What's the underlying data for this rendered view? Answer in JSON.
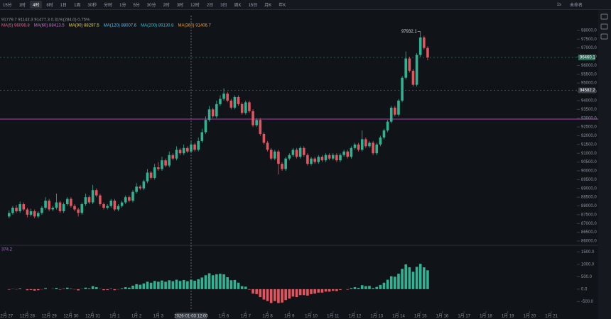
{
  "toolbar": {
    "items": [
      "15分",
      "1时",
      "4时",
      "8时",
      "1日",
      "1周",
      "30秒",
      "分时",
      "1分",
      "5分",
      "30分",
      "2时",
      "3时",
      "12时",
      "2日",
      "3日",
      "周K",
      "15日",
      "月K",
      "年K"
    ],
    "active_index": 2,
    "right": [
      "1s",
      "未命名"
    ]
  },
  "chart_data": {
    "type": "candlestick",
    "info": "91779.7  91143.3  91477.3  0.31%(284.0)  0.75%",
    "legend": [
      {
        "name": "MA(5) 96096.8",
        "color": "#e8618c"
      },
      {
        "name": "MA(60) 88413.5",
        "color": "#c86fd0"
      },
      {
        "name": "MA(90) 88297.5",
        "color": "#e6d34a"
      },
      {
        "name": "MA(120) 88007.6",
        "color": "#4fc3f7"
      },
      {
        "name": "MA(200) 89130.8",
        "color": "#26c6da"
      },
      {
        "name": "MA(360) 91406.7",
        "color": "#f0a030"
      }
    ],
    "up_color": "#2fb392",
    "down_color": "#e2555f",
    "xlim": [
      -2.5,
      156
    ],
    "xticks": [
      {
        "value": -1,
        "label": "12月 27"
      },
      {
        "value": 5,
        "label": "12月 28"
      },
      {
        "value": 11,
        "label": "12月 29"
      },
      {
        "value": 17,
        "label": "12月 30"
      },
      {
        "value": 23,
        "label": "12月 31"
      },
      {
        "value": 29,
        "label": "1月 1"
      },
      {
        "value": 35,
        "label": "1月 2"
      },
      {
        "value": 41,
        "label": "1月 3"
      },
      {
        "value": 59,
        "label": "1月 6"
      },
      {
        "value": 65,
        "label": "1月 7"
      },
      {
        "value": 71,
        "label": "1月 8"
      },
      {
        "value": 77,
        "label": "1月 9"
      },
      {
        "value": 83,
        "label": "1月 10"
      },
      {
        "value": 89,
        "label": "1月 11"
      },
      {
        "value": 95,
        "label": "1月 12"
      },
      {
        "value": 101,
        "label": "1月 13"
      },
      {
        "value": 107,
        "label": "1月 14"
      },
      {
        "value": 113,
        "label": "1月 15"
      },
      {
        "value": 119,
        "label": "1月 16"
      },
      {
        "value": 125,
        "label": "1月 17"
      },
      {
        "value": 131,
        "label": "1月 18"
      },
      {
        "value": 137,
        "label": "1月 19"
      },
      {
        "value": 143,
        "label": "1月 20"
      },
      {
        "value": 149,
        "label": "1月 21"
      }
    ],
    "crosshair": {
      "value": 50,
      "label": "2026-01-03 12:00"
    },
    "ylim": [
      85800,
      98600
    ],
    "yticks": [
      {
        "value": 98000,
        "label": "98000.0"
      },
      {
        "value": 97500,
        "label": "97500.0"
      },
      {
        "value": 97000,
        "label": "97000.0"
      },
      {
        "value": 96500,
        "label": "96500.0"
      },
      {
        "value": 96000,
        "label": "96000.0"
      },
      {
        "value": 95500,
        "label": "95500.0"
      },
      {
        "value": 95000,
        "label": "95000.0"
      },
      {
        "value": 94500,
        "label": "94500.0"
      },
      {
        "value": 94000,
        "label": "94000.0"
      },
      {
        "value": 93500,
        "label": "93500.0"
      },
      {
        "value": 93000,
        "label": "93000.0"
      },
      {
        "value": 92500,
        "label": "92500.0"
      },
      {
        "value": 92000,
        "label": "92000.0"
      },
      {
        "value": 91500,
        "label": "91500.0"
      },
      {
        "value": 91000,
        "label": "91000.0"
      },
      {
        "value": 90500,
        "label": "90500.0"
      },
      {
        "value": 90000,
        "label": "90000.0"
      },
      {
        "value": 89500,
        "label": "89500.0"
      },
      {
        "value": 89000,
        "label": "89000.0"
      },
      {
        "value": 88500,
        "label": "88500.0"
      },
      {
        "value": 88000,
        "label": "88000.0"
      },
      {
        "value": 87500,
        "label": "87500.0"
      },
      {
        "value": 87000,
        "label": "87000.0"
      },
      {
        "value": 86500,
        "label": "86500.0"
      },
      {
        "value": 86000,
        "label": "86000.0"
      }
    ],
    "price_tags": [
      96460.1,
      94582.2
    ],
    "peak_label": 97932.1,
    "candles": [
      [
        87400,
        87750,
        87300,
        87600
      ],
      [
        87600,
        88000,
        87500,
        87900
      ],
      [
        87900,
        88050,
        87600,
        87700
      ],
      [
        87700,
        88250,
        87600,
        88100
      ],
      [
        88100,
        88200,
        87700,
        87800
      ],
      [
        87800,
        87900,
        87350,
        87500
      ],
      [
        87500,
        87850,
        87400,
        87700
      ],
      [
        87700,
        87800,
        87300,
        87400
      ],
      [
        87400,
        87700,
        87300,
        87600
      ],
      [
        87600,
        88000,
        87500,
        87900
      ],
      [
        87900,
        88500,
        87800,
        88300
      ],
      [
        88300,
        88400,
        87700,
        87800
      ],
      [
        87800,
        88000,
        87700,
        87900
      ],
      [
        87900,
        88700,
        87800,
        88200
      ],
      [
        88200,
        88300,
        87600,
        87700
      ],
      [
        87700,
        88200,
        87600,
        88100
      ],
      [
        88100,
        88500,
        88000,
        88400
      ],
      [
        88400,
        88500,
        87900,
        88000
      ],
      [
        88000,
        88100,
        87700,
        87800
      ],
      [
        87800,
        87900,
        87400,
        87600
      ],
      [
        87600,
        88200,
        87500,
        88100
      ],
      [
        88100,
        88700,
        88000,
        88500
      ],
      [
        88500,
        88600,
        88100,
        88200
      ],
      [
        88200,
        89200,
        88100,
        88900
      ],
      [
        88900,
        89000,
        88500,
        88600
      ],
      [
        88600,
        88700,
        88000,
        88100
      ],
      [
        88100,
        88200,
        87800,
        87900
      ],
      [
        87900,
        88100,
        87800,
        88000
      ],
      [
        88000,
        88400,
        87900,
        88300
      ],
      [
        88300,
        88400,
        87700,
        87800
      ],
      [
        87800,
        88100,
        87700,
        88000
      ],
      [
        88000,
        88300,
        87900,
        88200
      ],
      [
        88200,
        88600,
        88100,
        88500
      ],
      [
        88500,
        88600,
        88200,
        88300
      ],
      [
        88300,
        88900,
        88200,
        88800
      ],
      [
        88800,
        89300,
        88700,
        89100
      ],
      [
        89100,
        89200,
        88900,
        89000
      ],
      [
        89000,
        89500,
        88900,
        89400
      ],
      [
        89400,
        90100,
        89300,
        89900
      ],
      [
        89900,
        90000,
        89500,
        89600
      ],
      [
        89600,
        90400,
        89500,
        90200
      ],
      [
        90200,
        90500,
        90000,
        90100
      ],
      [
        90100,
        90800,
        90000,
        90600
      ],
      [
        90600,
        90700,
        90200,
        90300
      ],
      [
        90300,
        91100,
        90200,
        90900
      ],
      [
        90900,
        91000,
        90600,
        90700
      ],
      [
        90700,
        91400,
        90600,
        91200
      ],
      [
        91200,
        91300,
        90900,
        91000
      ],
      [
        91000,
        91500,
        90900,
        91300
      ],
      [
        91300,
        91400,
        91000,
        91100
      ],
      [
        91100,
        91700,
        91000,
        91500
      ],
      [
        91500,
        91600,
        91100,
        91200
      ],
      [
        91200,
        91900,
        91100,
        91700
      ],
      [
        91700,
        92400,
        91600,
        92200
      ],
      [
        92200,
        93100,
        92100,
        92900
      ],
      [
        92900,
        93700,
        92800,
        93500
      ],
      [
        93500,
        93600,
        93000,
        93100
      ],
      [
        93100,
        94000,
        93000,
        93800
      ],
      [
        93800,
        94300,
        93700,
        94100
      ],
      [
        94100,
        94700,
        94000,
        94400
      ],
      [
        94400,
        94500,
        93900,
        94000
      ],
      [
        94000,
        94100,
        93500,
        93600
      ],
      [
        93600,
        94300,
        93500,
        94200
      ],
      [
        94200,
        94300,
        93700,
        93800
      ],
      [
        93800,
        93900,
        93200,
        93300
      ],
      [
        93300,
        94000,
        93200,
        93900
      ],
      [
        93900,
        94000,
        93300,
        93400
      ],
      [
        93400,
        93500,
        92500,
        92600
      ],
      [
        92600,
        93000,
        92500,
        92900
      ],
      [
        92900,
        93000,
        92000,
        92100
      ],
      [
        92100,
        92200,
        91500,
        91600
      ],
      [
        91600,
        91700,
        91100,
        91200
      ],
      [
        91200,
        91300,
        90600,
        90700
      ],
      [
        90700,
        91200,
        90600,
        91100
      ],
      [
        91100,
        91200,
        89800,
        90400
      ],
      [
        90400,
        90500,
        90000,
        90100
      ],
      [
        90100,
        90800,
        90000,
        90700
      ],
      [
        90700,
        91000,
        90600,
        90900
      ],
      [
        90900,
        91300,
        90800,
        91200
      ],
      [
        91200,
        91300,
        90700,
        90800
      ],
      [
        90800,
        91400,
        90700,
        91300
      ],
      [
        91300,
        91400,
        90800,
        90900
      ],
      [
        90900,
        91000,
        90300,
        90400
      ],
      [
        90400,
        90800,
        90300,
        90700
      ],
      [
        90700,
        90800,
        90400,
        90500
      ],
      [
        90500,
        90900,
        90400,
        90800
      ],
      [
        90800,
        90900,
        90500,
        90600
      ],
      [
        90600,
        91000,
        90500,
        90900
      ],
      [
        90900,
        91000,
        90600,
        90700
      ],
      [
        90700,
        91000,
        90600,
        90900
      ],
      [
        90900,
        91000,
        90500,
        90600
      ],
      [
        90600,
        91000,
        90500,
        90900
      ],
      [
        90900,
        91200,
        90800,
        91100
      ],
      [
        91100,
        91200,
        90700,
        90800
      ],
      [
        90800,
        91400,
        90700,
        91300
      ],
      [
        91300,
        91600,
        91200,
        91500
      ],
      [
        91500,
        91600,
        91100,
        91200
      ],
      [
        91200,
        92300,
        91100,
        91800
      ],
      [
        91800,
        91900,
        91300,
        91400
      ],
      [
        91400,
        91700,
        91300,
        91600
      ],
      [
        91600,
        91700,
        90900,
        91000
      ],
      [
        91000,
        91600,
        90900,
        91500
      ],
      [
        91500,
        92000,
        91400,
        91900
      ],
      [
        91900,
        92400,
        91800,
        92300
      ],
      [
        92300,
        92900,
        92200,
        92800
      ],
      [
        92800,
        93700,
        92700,
        93600
      ],
      [
        93600,
        93700,
        93100,
        93200
      ],
      [
        93200,
        94100,
        93100,
        94000
      ],
      [
        94000,
        95400,
        93900,
        95300
      ],
      [
        95300,
        96800,
        95200,
        96400
      ],
      [
        96400,
        96500,
        95600,
        95700
      ],
      [
        95700,
        95800,
        94800,
        94900
      ],
      [
        94900,
        96700,
        94800,
        96600
      ],
      [
        96600,
        97932.1,
        96500,
        97600
      ],
      [
        97600,
        97700,
        96900,
        97000
      ],
      [
        97000,
        97100,
        96300,
        96460.1
      ]
    ],
    "macd": {
      "dif_value": 374.2,
      "dif_color": "#b36bd6",
      "ylim": [
        -860,
        1710
      ],
      "yticks": [
        {
          "value": 1500,
          "label": "1500.0"
        },
        {
          "value": 1000,
          "label": "1000.0"
        },
        {
          "value": 500,
          "label": "500.0"
        },
        {
          "value": 0,
          "label": "0.0"
        },
        {
          "value": -500,
          "label": "-500.0"
        }
      ],
      "values": [
        -20,
        10,
        -10,
        30,
        0,
        -40,
        -30,
        -60,
        -40,
        -10,
        40,
        0,
        10,
        50,
        -20,
        20,
        60,
        20,
        -10,
        -50,
        10,
        60,
        30,
        120,
        80,
        10,
        -40,
        -30,
        20,
        -40,
        -10,
        30,
        80,
        60,
        140,
        200,
        180,
        230,
        300,
        260,
        330,
        300,
        350,
        300,
        360,
        320,
        380,
        330,
        370,
        320,
        380,
        340,
        400,
        470,
        560,
        640,
        560,
        600,
        620,
        600,
        480,
        360,
        370,
        260,
        120,
        100,
        -20,
        -180,
        -200,
        -320,
        -420,
        -480,
        -560,
        -480,
        -560,
        -540,
        -440,
        -380,
        -300,
        -320,
        -240,
        -240,
        -260,
        -200,
        -180,
        -140,
        -140,
        -100,
        -100,
        -70,
        -80,
        -30,
        0,
        -20,
        40,
        80,
        50,
        160,
        120,
        130,
        40,
        90,
        170,
        260,
        380,
        520,
        500,
        620,
        820,
        1000,
        880,
        700,
        900,
        1020,
        880,
        760
      ]
    }
  }
}
